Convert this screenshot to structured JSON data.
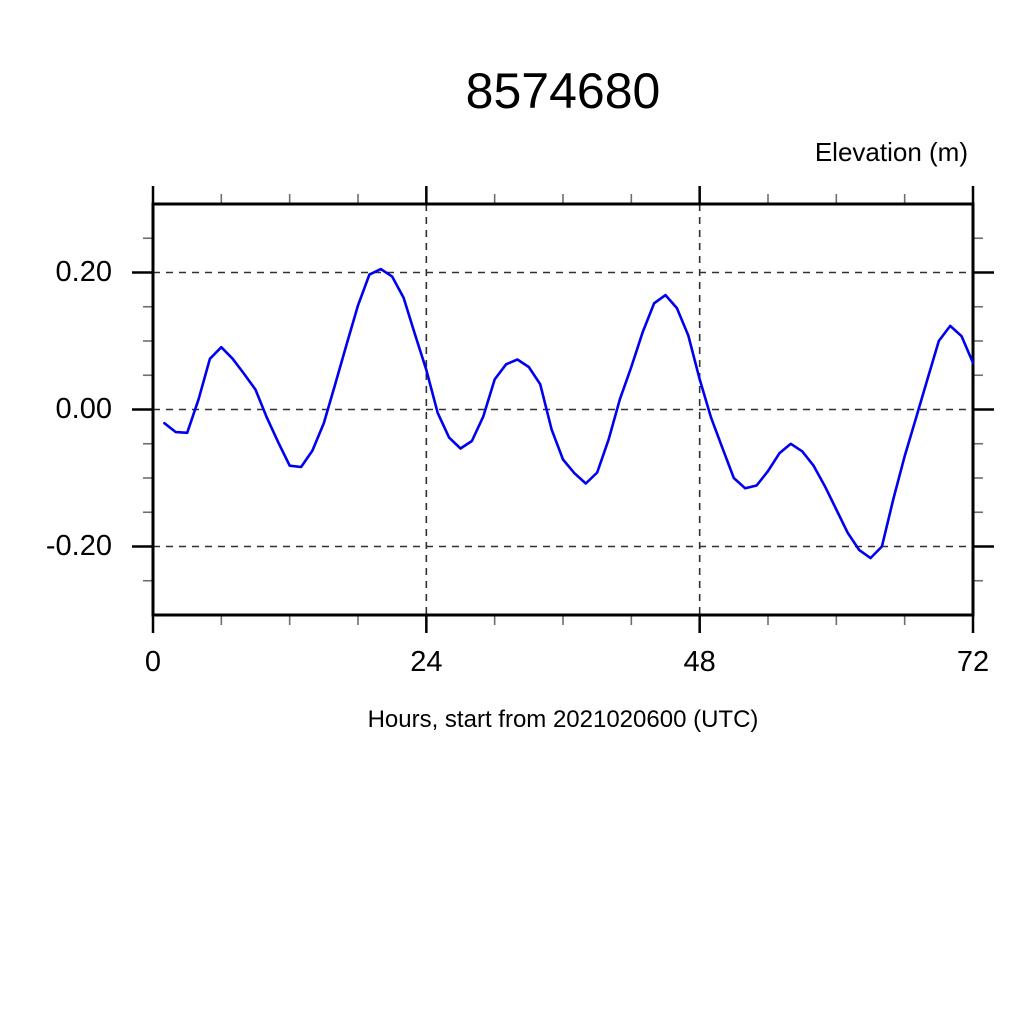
{
  "page": {
    "background": "#ffffff"
  },
  "chart_data": {
    "type": "line",
    "title": "8574680",
    "y_axis_label": "Elevation (m)",
    "xlabel": "Hours, start from 2021020600 (UTC)",
    "series": [
      {
        "name": "elevation",
        "x": [
          1,
          2,
          3,
          4,
          5,
          6,
          7,
          8,
          9,
          10,
          11,
          12,
          13,
          14,
          15,
          16,
          17,
          18,
          19,
          20,
          21,
          22,
          23,
          24,
          25,
          26,
          27,
          28,
          29,
          30,
          31,
          32,
          33,
          34,
          35,
          36,
          37,
          38,
          39,
          40,
          41,
          42,
          43,
          44,
          45,
          46,
          47,
          48,
          49,
          50,
          51,
          52,
          53,
          54,
          55,
          56,
          57,
          58,
          59,
          60,
          61,
          62,
          63,
          64,
          65,
          66,
          67,
          68,
          69,
          70,
          71,
          72
        ],
        "values": [
          -0.02,
          -0.033,
          -0.034,
          0.015,
          0.074,
          0.091,
          0.074,
          0.052,
          0.029,
          -0.012,
          -0.048,
          -0.082,
          -0.084,
          -0.06,
          -0.02,
          0.037,
          0.095,
          0.152,
          0.197,
          0.205,
          0.194,
          0.163,
          0.11,
          0.058,
          -0.005,
          -0.041,
          -0.057,
          -0.046,
          -0.01,
          0.044,
          0.066,
          0.073,
          0.062,
          0.037,
          -0.029,
          -0.073,
          -0.093,
          -0.108,
          -0.092,
          -0.044,
          0.015,
          0.062,
          0.113,
          0.155,
          0.167,
          0.148,
          0.108,
          0.044,
          -0.012,
          -0.056,
          -0.1,
          -0.115,
          -0.111,
          -0.09,
          -0.064,
          -0.05,
          -0.061,
          -0.082,
          -0.112,
          -0.146,
          -0.18,
          -0.205,
          -0.217,
          -0.2,
          -0.131,
          -0.068,
          -0.012,
          0.044,
          0.1,
          0.122,
          0.107,
          0.068
        ]
      }
    ],
    "xlim": [
      0,
      72
    ],
    "ylim": [
      -0.3,
      0.3
    ],
    "x_major_ticks": [
      0,
      24,
      48,
      72
    ],
    "x_minor_step": 6,
    "y_major_ticks": [
      -0.2,
      0.0,
      0.2
    ],
    "y_minor_step": 0.05,
    "grid": true,
    "grid_style": "dashed",
    "legend": "none",
    "colors": {
      "line": "#0000ee",
      "frame": "#000000",
      "grid": "#303030",
      "minor_tick": "#6e6e6e",
      "text": "#000000"
    }
  }
}
